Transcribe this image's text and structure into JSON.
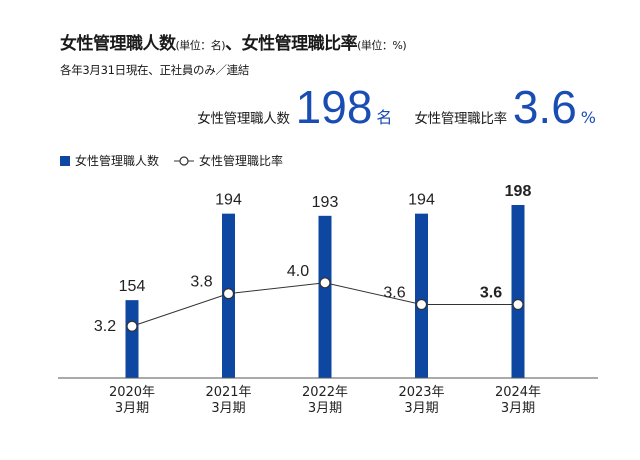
{
  "header": {
    "title": "女性管理職人数",
    "title_unit": "(単位：名)",
    "title_sep": "、",
    "title2": "女性管理職比率",
    "title2_unit": "(単位：%)",
    "subtitle": "各年3月31日現在、正社員のみ／連結"
  },
  "summary": {
    "count_label": "女性管理職人数",
    "count_value": "198",
    "count_unit": "名",
    "ratio_label": "女性管理職比率",
    "ratio_value": "3.6",
    "ratio_unit": "%"
  },
  "colors": {
    "bar": "#0e47a1",
    "accent": "#1a4db3",
    "line": "#333333"
  },
  "chart_data": {
    "type": "bar",
    "categories": [
      [
        "2020年",
        "3月期"
      ],
      [
        "2021年",
        "3月期"
      ],
      [
        "2022年",
        "3月期"
      ],
      [
        "2023年",
        "3月期"
      ],
      [
        "2024年",
        "3月期"
      ]
    ],
    "series": [
      {
        "name": "女性管理職人数",
        "type": "bar",
        "values": [
          154,
          194,
          193,
          194,
          198
        ],
        "labels": [
          "154",
          "194",
          "193",
          "194",
          "198"
        ]
      },
      {
        "name": "女性管理職比率",
        "type": "line",
        "values": [
          3.2,
          3.8,
          4.0,
          3.6,
          3.6
        ],
        "labels": [
          "3.2",
          "3.8",
          "4.0",
          "3.6",
          "3.6"
        ]
      }
    ],
    "legend": "top-left",
    "grid": false
  }
}
